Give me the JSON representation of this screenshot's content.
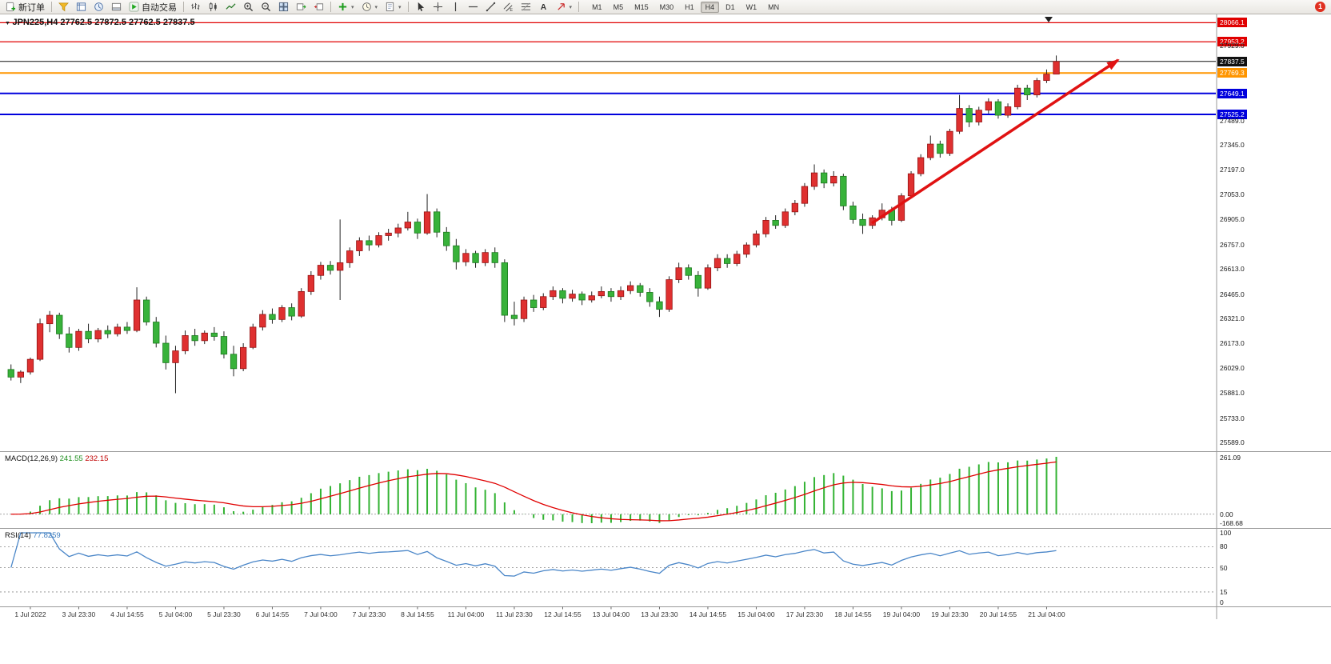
{
  "toolbar": {
    "new_order_label": "新订单",
    "auto_trading_label": "自动交易",
    "timeframes": [
      "M1",
      "M5",
      "M15",
      "M30",
      "H1",
      "H4",
      "D1",
      "W1",
      "MN"
    ],
    "active_timeframe": "H4",
    "notification_badge": "1"
  },
  "chart": {
    "title": "JPN225,H4 27762.5 27872.5 27762.5 27837.5",
    "colors": {
      "up": "#df3030",
      "up_border": "#941414",
      "down": "#38b23a",
      "down_border": "#1c7a1e",
      "wick": "#222222",
      "macd_hist": "#33b333",
      "macd_signal": "#e00000",
      "rsi": "#4a86c8",
      "arrow": "#e01212"
    },
    "hlines": [
      {
        "price": 28066.1,
        "label": "28066.1",
        "color": "#e00000",
        "width": 1.3,
        "tag": true
      },
      {
        "price": 27953.2,
        "label": "27953.2",
        "color": "#e00000",
        "width": 1.3,
        "tag": true
      },
      {
        "price": 27837.5,
        "label": "27837.5",
        "color": "#111111",
        "width": 1.0,
        "tag": true
      },
      {
        "price": 27769.3,
        "label": "27769.3",
        "color": "#ff9500",
        "width": 2.0,
        "tag": true
      },
      {
        "price": 27649.1,
        "label": "27649.1",
        "color": "#0000dd",
        "width": 2.0,
        "tag": true
      },
      {
        "price": 27525.2,
        "label": "27525.2",
        "color": "#0000dd",
        "width": 2.0,
        "tag": true
      }
    ],
    "axis_labels": [
      "27929.0",
      "27489.0",
      "27345.0",
      "27197.0",
      "27053.0",
      "26905.0",
      "26757.0",
      "26613.0",
      "26465.0",
      "26321.0",
      "26173.0",
      "26029.0",
      "25881.0",
      "25733.0",
      "25589.0"
    ]
  },
  "macd": {
    "label": "MACD(12,26,9)",
    "value_main": "241.55",
    "value_signal": "232.15",
    "axis_max": "261.09",
    "axis_zero": "0.00",
    "axis_min": "-168.68"
  },
  "rsi": {
    "label": "RSI(14)",
    "value": "77.8259",
    "axis_labels": [
      "100",
      "80",
      "50",
      "15",
      "0"
    ],
    "levels": [
      80,
      50,
      15
    ]
  },
  "chart_data": {
    "type": "candlestick",
    "symbol": "JPN225",
    "period": "H4",
    "ohlc_display": {
      "open": 27762.5,
      "high": 27872.5,
      "low": 27762.5,
      "close": 27837.5
    },
    "y_axis_range": [
      25538,
      28115
    ],
    "x_label_start": 2,
    "x_label_step": 5,
    "x_labels": [
      "1 Jul 2022",
      "3 Jul 23:30",
      "4 Jul 14:55",
      "5 Jul 04:00",
      "5 Jul 23:30",
      "6 Jul 14:55",
      "7 Jul 04:00",
      "7 Jul 23:30",
      "8 Jul 14:55",
      "11 Jul 04:00",
      "11 Jul 23:30",
      "12 Jul 14:55",
      "13 Jul 04:00",
      "13 Jul 23:30",
      "14 Jul 14:55",
      "15 Jul 04:00",
      "17 Jul 23:30",
      "18 Jul 14:55",
      "19 Jul 04:00",
      "19 Jul 23:30",
      "20 Jul 14:55",
      "21 Jul 04:00"
    ],
    "candles": [
      [
        26020,
        26050,
        25955,
        25975
      ],
      [
        25975,
        26015,
        25940,
        26005
      ],
      [
        26005,
        26090,
        25990,
        26080
      ],
      [
        26080,
        26320,
        26070,
        26290
      ],
      [
        26290,
        26365,
        26240,
        26340
      ],
      [
        26340,
        26355,
        26200,
        26230
      ],
      [
        26230,
        26270,
        26120,
        26150
      ],
      [
        26150,
        26260,
        26130,
        26245
      ],
      [
        26245,
        26290,
        26175,
        26200
      ],
      [
        26200,
        26265,
        26180,
        26250
      ],
      [
        26250,
        26280,
        26205,
        26230
      ],
      [
        26230,
        26290,
        26215,
        26270
      ],
      [
        26270,
        26300,
        26230,
        26250
      ],
      [
        26250,
        26505,
        26240,
        26430
      ],
      [
        26430,
        26450,
        26280,
        26300
      ],
      [
        26300,
        26330,
        26150,
        26175
      ],
      [
        26175,
        26220,
        26020,
        26060
      ],
      [
        26060,
        26160,
        25880,
        26130
      ],
      [
        26130,
        26250,
        26110,
        26220
      ],
      [
        26220,
        26260,
        26160,
        26190
      ],
      [
        26190,
        26250,
        26170,
        26235
      ],
      [
        26235,
        26270,
        26190,
        26215
      ],
      [
        26215,
        26245,
        26085,
        26110
      ],
      [
        26110,
        26160,
        25980,
        26025
      ],
      [
        26025,
        26175,
        26010,
        26150
      ],
      [
        26150,
        26290,
        26140,
        26270
      ],
      [
        26270,
        26370,
        26250,
        26345
      ],
      [
        26345,
        26380,
        26290,
        26315
      ],
      [
        26315,
        26400,
        26300,
        26385
      ],
      [
        26385,
        26410,
        26310,
        26335
      ],
      [
        26335,
        26500,
        26325,
        26480
      ],
      [
        26480,
        26600,
        26460,
        26575
      ],
      [
        26575,
        26655,
        26550,
        26635
      ],
      [
        26635,
        26660,
        26580,
        26605
      ],
      [
        26605,
        26905,
        26430,
        26650
      ],
      [
        26650,
        26740,
        26620,
        26720
      ],
      [
        26720,
        26800,
        26690,
        26780
      ],
      [
        26780,
        26810,
        26720,
        26755
      ],
      [
        26755,
        26830,
        26740,
        26810
      ],
      [
        26810,
        26850,
        26780,
        26825
      ],
      [
        26825,
        26880,
        26800,
        26855
      ],
      [
        26855,
        26950,
        26840,
        26890
      ],
      [
        26890,
        26910,
        26790,
        26825
      ],
      [
        26825,
        27055,
        26815,
        26950
      ],
      [
        26950,
        26970,
        26800,
        26830
      ],
      [
        26830,
        26860,
        26720,
        26750
      ],
      [
        26750,
        26790,
        26610,
        26655
      ],
      [
        26655,
        26730,
        26630,
        26705
      ],
      [
        26705,
        26720,
        26620,
        26650
      ],
      [
        26650,
        26730,
        26630,
        26710
      ],
      [
        26710,
        26740,
        26620,
        26650
      ],
      [
        26650,
        26670,
        26300,
        26340
      ],
      [
        26340,
        26420,
        26280,
        26320
      ],
      [
        26320,
        26450,
        26300,
        26430
      ],
      [
        26430,
        26460,
        26360,
        26385
      ],
      [
        26385,
        26470,
        26370,
        26450
      ],
      [
        26450,
        26510,
        26430,
        26485
      ],
      [
        26485,
        26500,
        26410,
        26440
      ],
      [
        26440,
        26490,
        26420,
        26465
      ],
      [
        26465,
        26480,
        26400,
        26430
      ],
      [
        26430,
        26480,
        26415,
        26455
      ],
      [
        26455,
        26510,
        26440,
        26480
      ],
      [
        26480,
        26500,
        26420,
        26450
      ],
      [
        26450,
        26510,
        26430,
        26485
      ],
      [
        26485,
        26540,
        26465,
        26515
      ],
      [
        26515,
        26530,
        26450,
        26475
      ],
      [
        26475,
        26500,
        26390,
        26420
      ],
      [
        26420,
        26450,
        26330,
        26375
      ],
      [
        26375,
        26570,
        26360,
        26550
      ],
      [
        26550,
        26650,
        26530,
        26620
      ],
      [
        26620,
        26640,
        26550,
        26575
      ],
      [
        26575,
        26600,
        26450,
        26500
      ],
      [
        26500,
        26640,
        26490,
        26620
      ],
      [
        26620,
        26700,
        26600,
        26675
      ],
      [
        26675,
        26700,
        26620,
        26645
      ],
      [
        26645,
        26720,
        26630,
        26700
      ],
      [
        26700,
        26770,
        26680,
        26755
      ],
      [
        26755,
        26840,
        26740,
        26820
      ],
      [
        26820,
        26920,
        26800,
        26900
      ],
      [
        26900,
        26930,
        26850,
        26870
      ],
      [
        26870,
        26970,
        26855,
        26950
      ],
      [
        26950,
        27020,
        26930,
        27000
      ],
      [
        27000,
        27120,
        26980,
        27100
      ],
      [
        27100,
        27230,
        27080,
        27180
      ],
      [
        27180,
        27200,
        27090,
        27120
      ],
      [
        27120,
        27190,
        27100,
        27160
      ],
      [
        27160,
        27175,
        26960,
        26985
      ],
      [
        26985,
        27010,
        26880,
        26905
      ],
      [
        26905,
        26940,
        26820,
        26870
      ],
      [
        26870,
        26930,
        26850,
        26915
      ],
      [
        26915,
        27000,
        26900,
        26960
      ],
      [
        26960,
        26980,
        26870,
        26900
      ],
      [
        26900,
        27060,
        26890,
        27045
      ],
      [
        27045,
        27190,
        27030,
        27175
      ],
      [
        27175,
        27290,
        27160,
        27270
      ],
      [
        27270,
        27400,
        27255,
        27350
      ],
      [
        27350,
        27370,
        27270,
        27295
      ],
      [
        27295,
        27440,
        27280,
        27425
      ],
      [
        27425,
        27640,
        27410,
        27560
      ],
      [
        27560,
        27580,
        27450,
        27480
      ],
      [
        27480,
        27570,
        27460,
        27550
      ],
      [
        27550,
        27620,
        27530,
        27600
      ],
      [
        27600,
        27615,
        27500,
        27520
      ],
      [
        27520,
        27590,
        27505,
        27570
      ],
      [
        27570,
        27700,
        27555,
        27680
      ],
      [
        27680,
        27700,
        27610,
        27640
      ],
      [
        27640,
        27740,
        27625,
        27725
      ],
      [
        27725,
        27790,
        27710,
        27762.5
      ],
      [
        27762.5,
        27872.5,
        27762.5,
        27837.5
      ]
    ],
    "indicators": [
      {
        "name": "MACD",
        "params": [
          12,
          26,
          9
        ],
        "current": [
          241.55,
          232.15
        ]
      },
      {
        "name": "RSI",
        "params": [
          14
        ],
        "current": 77.8259
      }
    ]
  }
}
